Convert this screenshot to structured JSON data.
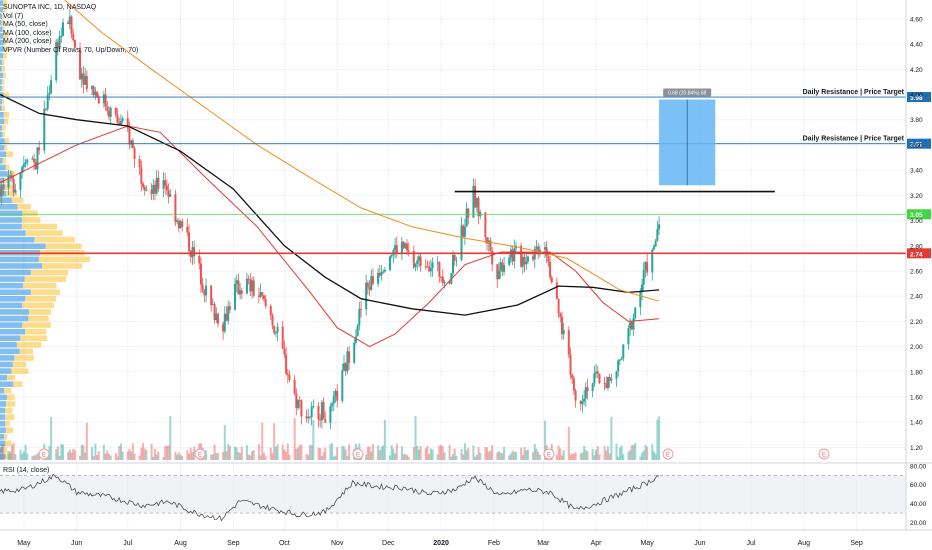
{
  "legend": {
    "title": "SUNOPTA INC, 1D, NASDAQ",
    "vol": "Vol (7)",
    "ma50": "MA (50, close)",
    "ma100": "MA (100, close)",
    "ma200": "MA (200, close)",
    "vpvr": "VPVR (Number Of Rows, 70, Up/Down, 70)"
  },
  "rsi_legend": "RSI (14, close)",
  "colors": {
    "up": "#26a69a",
    "down": "#ef5350",
    "ma50": "#e53935",
    "ma100": "#111111",
    "ma200": "#ef8f1c",
    "resistance": "#1e6fb5",
    "support": "#e53935",
    "price_line": "#43d643",
    "box": "#64b5f6",
    "vpvr_up": "#1e88e5",
    "vpvr_down": "#fbc02d"
  },
  "chart_data": [
    {
      "type": "candlestick",
      "title": "SUNOPTA INC, 1D, NASDAQ",
      "ylim": [
        1.1,
        4.75
      ],
      "y_ticks": [
        "1.20",
        "1.40",
        "1.60",
        "1.80",
        "2.00",
        "2.20",
        "2.40",
        "2.60",
        "2.80",
        "3.00",
        "3.20",
        "3.40",
        "3.60",
        "3.80",
        "4.00",
        "4.20",
        "4.40",
        "4.60"
      ],
      "x_labels": [
        "May",
        "Jun",
        "Jul",
        "Aug",
        "Sep",
        "Oct",
        "Nov",
        "Dec",
        "2020",
        "Feb",
        "Mar",
        "Apr",
        "May",
        "Jun",
        "Jul",
        "Aug",
        "Sep"
      ],
      "x_range": [
        "2019-04-17",
        "2020-09-30"
      ],
      "close_series": [
        {
          "date": "2019-04-17",
          "close": 3.25
        },
        {
          "date": "2019-04-26",
          "close": 3.3
        },
        {
          "date": "2019-05-03",
          "close": 3.55
        },
        {
          "date": "2019-05-08",
          "close": 3.45
        },
        {
          "date": "2019-05-14",
          "close": 3.9
        },
        {
          "date": "2019-05-20",
          "close": 4.4
        },
        {
          "date": "2019-05-27",
          "close": 4.6
        },
        {
          "date": "2019-06-03",
          "close": 4.2
        },
        {
          "date": "2019-06-10",
          "close": 4.05
        },
        {
          "date": "2019-06-17",
          "close": 3.95
        },
        {
          "date": "2019-06-24",
          "close": 3.8
        },
        {
          "date": "2019-07-01",
          "close": 3.7
        },
        {
          "date": "2019-07-08",
          "close": 3.4
        },
        {
          "date": "2019-07-15",
          "close": 3.2
        },
        {
          "date": "2019-07-22",
          "close": 3.35
        },
        {
          "date": "2019-07-29",
          "close": 3.05
        },
        {
          "date": "2019-08-05",
          "close": 2.85
        },
        {
          "date": "2019-08-12",
          "close": 2.6
        },
        {
          "date": "2019-08-19",
          "close": 2.3
        },
        {
          "date": "2019-08-26",
          "close": 2.2
        },
        {
          "date": "2019-09-02",
          "close": 2.45
        },
        {
          "date": "2019-09-09",
          "close": 2.5
        },
        {
          "date": "2019-09-16",
          "close": 2.4
        },
        {
          "date": "2019-09-23",
          "close": 2.25
        },
        {
          "date": "2019-09-30",
          "close": 1.95
        },
        {
          "date": "2019-10-07",
          "close": 1.6
        },
        {
          "date": "2019-10-14",
          "close": 1.45
        },
        {
          "date": "2019-10-21",
          "close": 1.5
        },
        {
          "date": "2019-10-28",
          "close": 1.45
        },
        {
          "date": "2019-11-04",
          "close": 1.75
        },
        {
          "date": "2019-11-11",
          "close": 2.1
        },
        {
          "date": "2019-11-18",
          "close": 2.45
        },
        {
          "date": "2019-11-25",
          "close": 2.6
        },
        {
          "date": "2019-12-02",
          "close": 2.75
        },
        {
          "date": "2019-12-09",
          "close": 2.8
        },
        {
          "date": "2019-12-16",
          "close": 2.65
        },
        {
          "date": "2019-12-23",
          "close": 2.7
        },
        {
          "date": "2019-12-30",
          "close": 2.6
        },
        {
          "date": "2020-01-06",
          "close": 2.55
        },
        {
          "date": "2020-01-13",
          "close": 2.9
        },
        {
          "date": "2020-01-20",
          "close": 3.2
        },
        {
          "date": "2020-01-27",
          "close": 2.9
        },
        {
          "date": "2020-02-03",
          "close": 2.6
        },
        {
          "date": "2020-02-10",
          "close": 2.75
        },
        {
          "date": "2020-02-17",
          "close": 2.7
        },
        {
          "date": "2020-02-24",
          "close": 2.75
        },
        {
          "date": "2020-03-02",
          "close": 2.85
        },
        {
          "date": "2020-03-09",
          "close": 2.3
        },
        {
          "date": "2020-03-16",
          "close": 1.95
        },
        {
          "date": "2020-03-20",
          "close": 1.55
        },
        {
          "date": "2020-03-27",
          "close": 1.7
        },
        {
          "date": "2020-04-03",
          "close": 1.75
        },
        {
          "date": "2020-04-10",
          "close": 1.7
        },
        {
          "date": "2020-04-17",
          "close": 1.95
        },
        {
          "date": "2020-04-24",
          "close": 2.3
        },
        {
          "date": "2020-05-01",
          "close": 2.65
        },
        {
          "date": "2020-05-05",
          "close": 2.75
        },
        {
          "date": "2020-05-08",
          "close": 3.05
        }
      ],
      "series": [
        {
          "name": "MA (50, close)",
          "values": [
            {
              "date": "2019-04-17",
              "y": 3.3
            },
            {
              "date": "2019-06-01",
              "y": 3.6
            },
            {
              "date": "2019-07-01",
              "y": 3.75
            },
            {
              "date": "2019-07-20",
              "y": 3.7
            },
            {
              "date": "2019-08-15",
              "y": 3.35
            },
            {
              "date": "2019-09-15",
              "y": 2.95
            },
            {
              "date": "2019-10-15",
              "y": 2.45
            },
            {
              "date": "2019-11-01",
              "y": 2.15
            },
            {
              "date": "2019-11-20",
              "y": 2.0
            },
            {
              "date": "2019-12-05",
              "y": 2.1
            },
            {
              "date": "2019-12-25",
              "y": 2.35
            },
            {
              "date": "2020-01-15",
              "y": 2.65
            },
            {
              "date": "2020-02-05",
              "y": 2.75
            },
            {
              "date": "2020-03-05",
              "y": 2.75
            },
            {
              "date": "2020-03-20",
              "y": 2.6
            },
            {
              "date": "2020-04-05",
              "y": 2.35
            },
            {
              "date": "2020-04-20",
              "y": 2.2
            },
            {
              "date": "2020-05-08",
              "y": 2.22
            }
          ]
        },
        {
          "name": "MA (100, close)",
          "values": [
            {
              "date": "2019-04-17",
              "y": 4.0
            },
            {
              "date": "2019-05-10",
              "y": 3.85
            },
            {
              "date": "2019-06-01",
              "y": 3.8
            },
            {
              "date": "2019-07-01",
              "y": 3.75
            },
            {
              "date": "2019-08-01",
              "y": 3.55
            },
            {
              "date": "2019-09-01",
              "y": 3.25
            },
            {
              "date": "2019-10-01",
              "y": 2.8
            },
            {
              "date": "2019-10-25",
              "y": 2.55
            },
            {
              "date": "2019-11-15",
              "y": 2.38
            },
            {
              "date": "2019-12-15",
              "y": 2.3
            },
            {
              "date": "2020-01-15",
              "y": 2.25
            },
            {
              "date": "2020-02-15",
              "y": 2.33
            },
            {
              "date": "2020-03-10",
              "y": 2.48
            },
            {
              "date": "2020-03-30",
              "y": 2.47
            },
            {
              "date": "2020-04-20",
              "y": 2.43
            },
            {
              "date": "2020-05-08",
              "y": 2.45
            }
          ]
        },
        {
          "name": "MA (200, close)",
          "values": [
            {
              "date": "2019-05-25",
              "y": 4.75
            },
            {
              "date": "2019-06-15",
              "y": 4.5
            },
            {
              "date": "2019-07-15",
              "y": 4.2
            },
            {
              "date": "2019-08-15",
              "y": 3.9
            },
            {
              "date": "2019-09-15",
              "y": 3.6
            },
            {
              "date": "2019-10-15",
              "y": 3.35
            },
            {
              "date": "2019-11-15",
              "y": 3.1
            },
            {
              "date": "2019-12-15",
              "y": 2.95
            },
            {
              "date": "2020-01-15",
              "y": 2.86
            },
            {
              "date": "2020-02-15",
              "y": 2.79
            },
            {
              "date": "2020-03-15",
              "y": 2.7
            },
            {
              "date": "2020-04-15",
              "y": 2.45
            },
            {
              "date": "2020-05-08",
              "y": 2.36
            }
          ]
        }
      ],
      "levels": [
        {
          "label": "Daily Resistance | Price Target",
          "price": "3.98",
          "value": 3.98
        },
        {
          "label": "Daily Resistance | Price Target",
          "price": "3.61",
          "value": 3.61
        },
        {
          "label": "",
          "price": "3.05",
          "value": 3.05
        },
        {
          "label": "",
          "price": "2.74",
          "value": 2.74
        }
      ],
      "horizontal_ray": {
        "value": 3.23,
        "from": "2020-01-09",
        "to": "2020-07-15"
      },
      "price_range_box": {
        "label": "0.68 (20.84%) 68",
        "from": "2020-05-08",
        "to": "2020-06-10",
        "low": 3.28,
        "high": 3.96
      },
      "earnings_markers": [
        "E",
        "E",
        "E",
        "E",
        "E",
        "E",
        "E"
      ]
    },
    {
      "type": "line",
      "title": "RSI (14, close)",
      "ylim": [
        12,
        82
      ],
      "y_ticks": [
        "20.00",
        "40.00",
        "60.00",
        "80.00"
      ],
      "band": [
        30,
        70
      ],
      "values": [
        {
          "date": "2019-04-17",
          "y": 53
        },
        {
          "date": "2019-05-01",
          "y": 55
        },
        {
          "date": "2019-05-20",
          "y": 70
        },
        {
          "date": "2019-06-01",
          "y": 52
        },
        {
          "date": "2019-06-20",
          "y": 47
        },
        {
          "date": "2019-07-10",
          "y": 38
        },
        {
          "date": "2019-07-25",
          "y": 42
        },
        {
          "date": "2019-08-10",
          "y": 30
        },
        {
          "date": "2019-08-25",
          "y": 24
        },
        {
          "date": "2019-09-05",
          "y": 43
        },
        {
          "date": "2019-09-25",
          "y": 34
        },
        {
          "date": "2019-10-10",
          "y": 28
        },
        {
          "date": "2019-10-25",
          "y": 31
        },
        {
          "date": "2019-11-10",
          "y": 62
        },
        {
          "date": "2019-11-25",
          "y": 58
        },
        {
          "date": "2019-12-10",
          "y": 57
        },
        {
          "date": "2019-12-25",
          "y": 50
        },
        {
          "date": "2020-01-10",
          "y": 55
        },
        {
          "date": "2020-01-20",
          "y": 68
        },
        {
          "date": "2020-02-05",
          "y": 48
        },
        {
          "date": "2020-02-20",
          "y": 55
        },
        {
          "date": "2020-03-05",
          "y": 52
        },
        {
          "date": "2020-03-20",
          "y": 33
        },
        {
          "date": "2020-04-01",
          "y": 40
        },
        {
          "date": "2020-04-15",
          "y": 50
        },
        {
          "date": "2020-05-01",
          "y": 62
        },
        {
          "date": "2020-05-08",
          "y": 70
        }
      ]
    }
  ]
}
